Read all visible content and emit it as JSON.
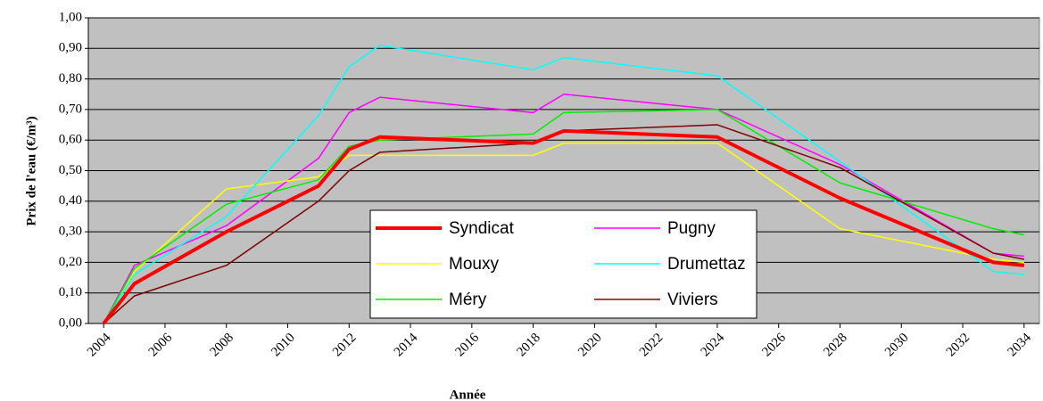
{
  "chart_data": {
    "type": "line",
    "xlabel": "Année",
    "ylabel": "Prix de l'eau (€/m³)",
    "x": [
      2004,
      2005,
      2008,
      2011,
      2012,
      2013,
      2018,
      2019,
      2024,
      2028,
      2033,
      2034
    ],
    "xlim": [
      2003.5,
      2034.5
    ],
    "xticks": [
      2004,
      2006,
      2008,
      2010,
      2012,
      2014,
      2016,
      2018,
      2020,
      2022,
      2024,
      2026,
      2028,
      2030,
      2032,
      2034
    ],
    "ylim": [
      0,
      1
    ],
    "yticks": [
      {
        "value": 0,
        "label": "0,00"
      },
      {
        "value": 0.1,
        "label": "0,10"
      },
      {
        "value": 0.2,
        "label": "0,20"
      },
      {
        "value": 0.3,
        "label": "0,30"
      },
      {
        "value": 0.4,
        "label": "0,40"
      },
      {
        "value": 0.5,
        "label": "0,50"
      },
      {
        "value": 0.6,
        "label": "0,60"
      },
      {
        "value": 0.7,
        "label": "0,70"
      },
      {
        "value": 0.8,
        "label": "0,80"
      },
      {
        "value": 0.9,
        "label": "0,90"
      },
      {
        "value": 1,
        "label": "1,00"
      }
    ],
    "grid": true,
    "legend": "lower center",
    "series": [
      {
        "name": "Syndicat",
        "color": "#ff0000",
        "line_width": 4,
        "values": [
          0,
          0.13,
          0.3,
          0.45,
          0.57,
          0.61,
          0.59,
          0.63,
          0.61,
          0.41,
          0.2,
          0.19
        ]
      },
      {
        "name": "Pugny",
        "color": "#ff00ff",
        "line_width": 1.5,
        "values": [
          0,
          0.19,
          0.32,
          0.54,
          0.69,
          0.74,
          0.69,
          0.75,
          0.7,
          0.52,
          0.23,
          0.22
        ]
      },
      {
        "name": "Mouxy",
        "color": "#ffff00",
        "line_width": 1.5,
        "values": [
          0,
          0.17,
          0.44,
          0.48,
          0.55,
          0.55,
          0.55,
          0.59,
          0.59,
          0.31,
          0.21,
          0.2
        ]
      },
      {
        "name": "Drumettaz",
        "color": "#00ffff",
        "line_width": 1.5,
        "values": [
          0,
          0.16,
          0.35,
          0.68,
          0.84,
          0.91,
          0.83,
          0.87,
          0.81,
          0.53,
          0.17,
          0.16
        ]
      },
      {
        "name": "Méry",
        "color": "#00ee00",
        "line_width": 1.5,
        "values": [
          0,
          0.18,
          0.39,
          0.47,
          0.58,
          0.6,
          0.62,
          0.69,
          0.7,
          0.46,
          0.31,
          0.29
        ]
      },
      {
        "name": "Viviers",
        "color": "#800000",
        "line_width": 1.5,
        "values": [
          0,
          0.09,
          0.19,
          0.4,
          0.5,
          0.56,
          0.59,
          0.63,
          0.65,
          0.51,
          0.23,
          0.21
        ]
      }
    ]
  }
}
